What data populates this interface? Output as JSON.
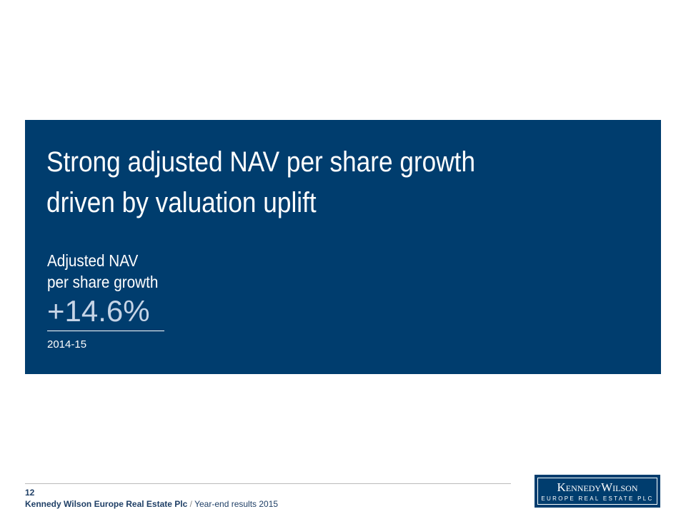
{
  "panel": {
    "title_line1": "Strong adjusted NAV per share growth",
    "title_line2": "driven by valuation uplift",
    "metric_label_line1": "Adjusted NAV",
    "metric_label_line2": "per share growth",
    "metric_value": "+14.6%",
    "period": "2014-15"
  },
  "footer": {
    "page_number": "12",
    "company": "Kennedy Wilson Europe Real Estate Plc",
    "separator": "/",
    "document": "Year-end results 2015"
  },
  "logo": {
    "line1": "KennedyWilson",
    "line2": "EUROPE REAL ESTATE PLC"
  }
}
